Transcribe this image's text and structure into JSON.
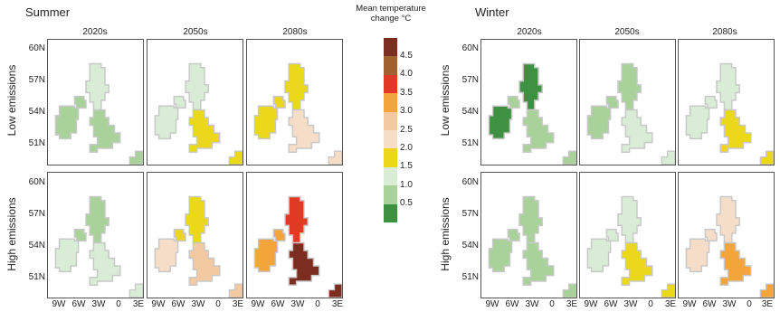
{
  "seasons": [
    {
      "label": "Summer"
    },
    {
      "label": "Winter"
    }
  ],
  "decades": [
    "2020s",
    "2050s",
    "2080s"
  ],
  "scenarios": [
    "Low emissions",
    "High emissions"
  ],
  "lat_labels": [
    "60N",
    "57N",
    "54N",
    "51N"
  ],
  "lon_labels": [
    "9W",
    "6W",
    "3W",
    "0",
    "3E"
  ],
  "legend": {
    "title_line1": "Mean temperature",
    "title_line2": "change °C",
    "ticks": [
      "4.5",
      "4.0",
      "3.5",
      "3.0",
      "2.5",
      "2.0",
      "1.5",
      "1.0",
      "0.5"
    ],
    "colors": [
      "#7b2e20",
      "#a0612f",
      "#e03a24",
      "#f3a43a",
      "#f2c9a0",
      "#f6ddc7",
      "#ecd81a",
      "#d8ecd6",
      "#a9d29a",
      "#3f9142"
    ]
  },
  "map_values": {
    "summer_low_2020s": {
      "scotland": 1.0,
      "ni": 0.8,
      "england": 0.9,
      "ireland": 0.9
    },
    "summer_low_2050s": {
      "scotland": 1.1,
      "ni": 1.2,
      "england": 1.8,
      "ireland": 1.2
    },
    "summer_low_2080s": {
      "scotland": 1.8,
      "ni": 1.8,
      "england": 2.3,
      "ireland": 1.9
    },
    "summer_high_2020s": {
      "scotland": 0.9,
      "ni": 0.9,
      "england": 1.2,
      "ireland": 1.0
    },
    "summer_high_2050s": {
      "scotland": 1.8,
      "ni": 1.8,
      "england": 2.8,
      "ireland": 2.3
    },
    "summer_high_2080s": {
      "scotland": 3.8,
      "ni": 3.2,
      "england": 4.6,
      "ireland": 3.3
    },
    "winter_low_2020s": {
      "scotland": 0.4,
      "ni": 0.9,
      "england": 0.9,
      "ireland": 0.4
    },
    "winter_low_2050s": {
      "scotland": 0.9,
      "ni": 0.9,
      "england": 1.1,
      "ireland": 0.9
    },
    "winter_low_2080s": {
      "scotland": 1.2,
      "ni": 1.2,
      "england": 1.7,
      "ireland": 1.2
    },
    "winter_high_2020s": {
      "scotland": 0.9,
      "ni": 0.9,
      "england": 0.9,
      "ireland": 0.9
    },
    "winter_high_2050s": {
      "scotland": 1.2,
      "ni": 1.2,
      "england": 1.8,
      "ireland": 1.2
    },
    "winter_high_2080s": {
      "scotland": 2.0,
      "ni": 2.0,
      "england": 3.0,
      "ireland": 2.2
    }
  }
}
